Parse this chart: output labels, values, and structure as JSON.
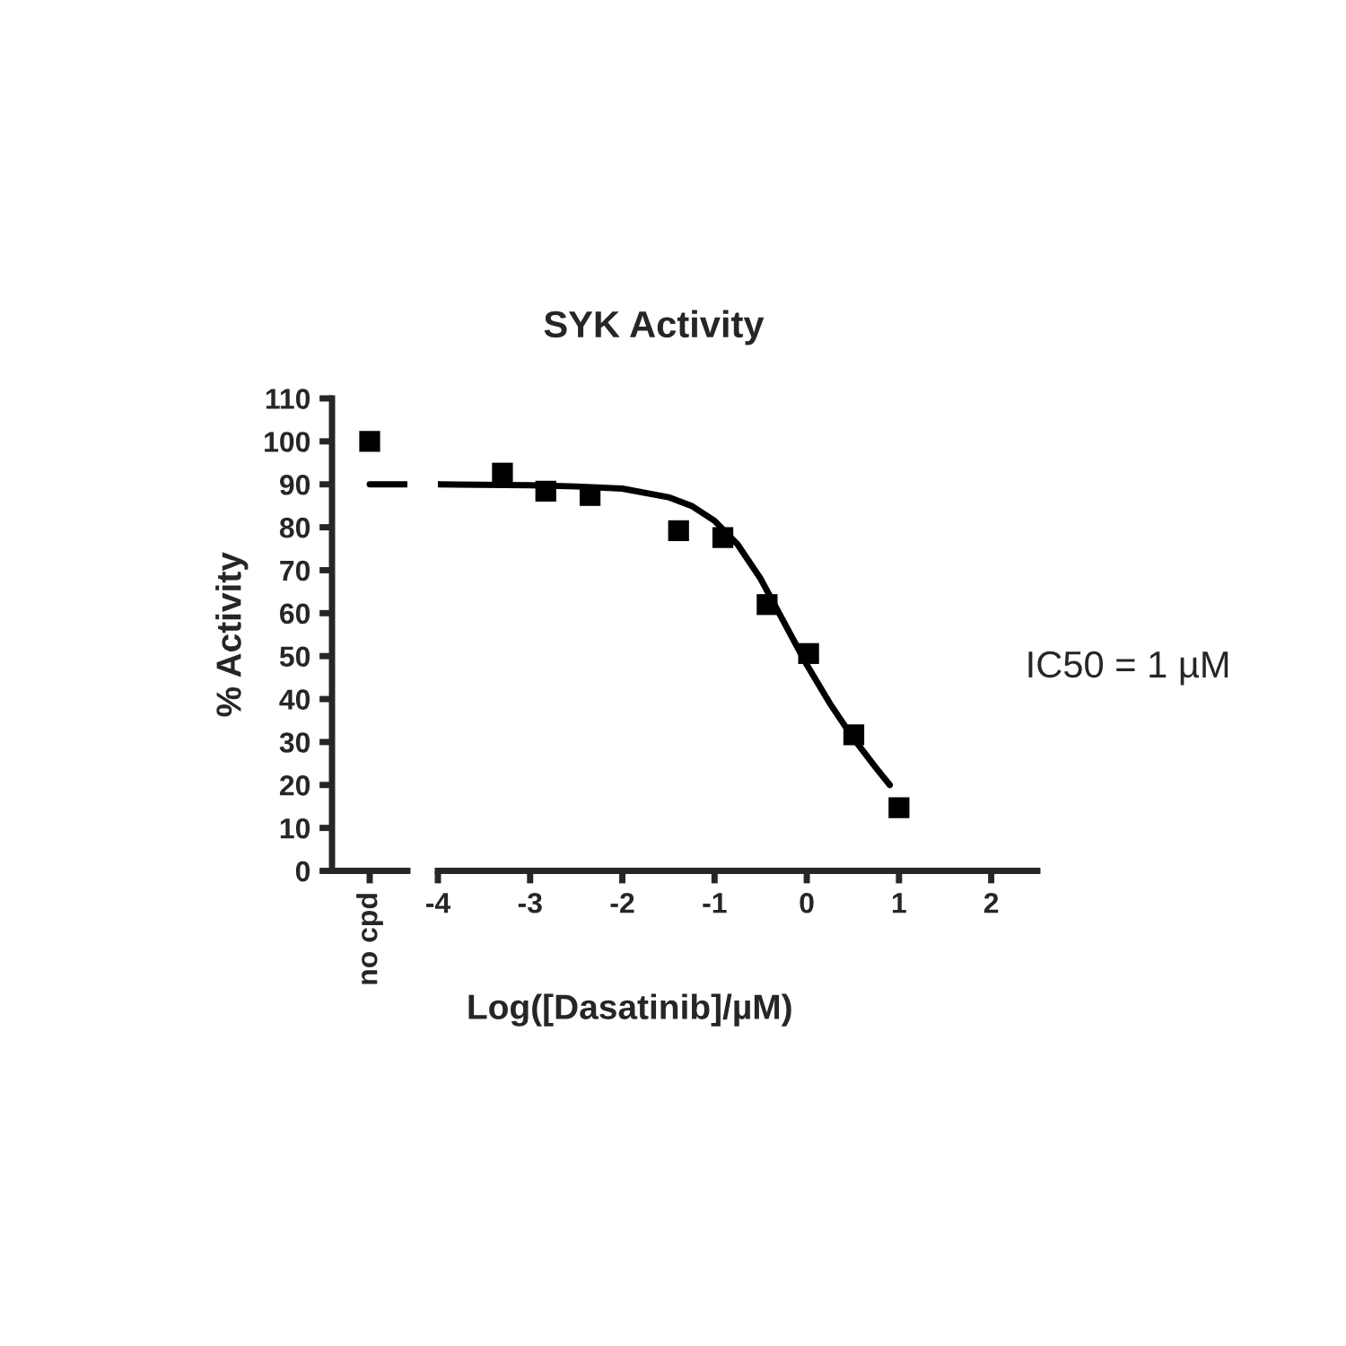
{
  "chart_data": [
    {
      "type": "scatter",
      "ylabel": "% Activity",
      "categories": [
        "no cpd"
      ],
      "ylim": [
        0,
        110
      ],
      "yticks": [
        0,
        10,
        20,
        30,
        40,
        50,
        60,
        70,
        80,
        90,
        100,
        110
      ],
      "grid": false,
      "legend": false,
      "series": [
        {
          "color": "#000000",
          "values": [
            100
          ],
          "marker": "square"
        }
      ],
      "ref_lines": [
        {
          "axis": "y",
          "value": 90,
          "color": "#000000"
        }
      ]
    },
    {
      "type": "scatter",
      "title": "SYK Activity",
      "xlabel": "Log([Dasatinib]/µM)",
      "xlim": [
        -4,
        2.5
      ],
      "xticks": [
        -4,
        -3,
        -2,
        -1,
        0,
        1,
        2
      ],
      "ylim": [
        0,
        110
      ],
      "tick_labels": "x",
      "grid": false,
      "legend": false,
      "annotations": [
        "IC50 = 1 µM"
      ],
      "series": [
        {
          "type": "scatter",
          "marker": "square",
          "color": "#000000",
          "x": [
            -3.3,
            -2.83,
            -2.35,
            -1.39,
            -0.91,
            -0.43,
            0.02,
            0.51,
            1.0
          ],
          "values": [
            92.6,
            88.4,
            87.4,
            79.2,
            77.6,
            62,
            50.6,
            31.7,
            14.7
          ]
        },
        {
          "type": "line",
          "marker": "none",
          "color": "#000000",
          "x": [
            -4,
            -3,
            -2.5,
            -2,
            -1.5,
            -1.25,
            -1,
            -0.75,
            -0.5,
            -0.25,
            0,
            0.25,
            0.5,
            0.75,
            0.9
          ],
          "values": [
            90,
            89.8,
            89.5,
            89,
            87,
            85,
            81.5,
            76,
            68,
            58,
            48,
            39,
            31,
            24,
            20
          ]
        }
      ]
    }
  ]
}
